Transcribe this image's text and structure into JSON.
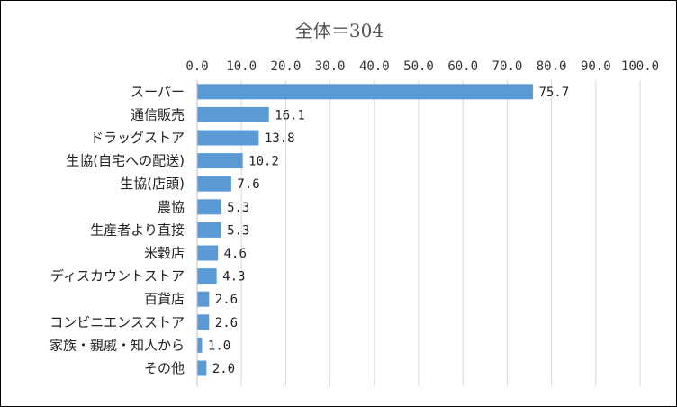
{
  "chart_data": {
    "type": "bar",
    "orientation": "horizontal",
    "title": "全体＝304",
    "categories": [
      "スーパー",
      "通信販売",
      "ドラッグストア",
      "生協(自宅への配送)",
      "生協(店頭)",
      "農協",
      "生産者より直接",
      "米穀店",
      "ディスカウントストア",
      "百貨店",
      "コンビニエンスストア",
      "家族・親戚・知人から",
      "その他"
    ],
    "values": [
      75.7,
      16.1,
      13.8,
      10.2,
      7.6,
      5.3,
      5.3,
      4.6,
      4.3,
      2.6,
      2.6,
      1.0,
      2.0
    ],
    "value_labels": [
      "75.7",
      "16.1",
      "13.8",
      "10.2",
      "7.6",
      "5.3",
      "5.3",
      "4.6",
      "4.3",
      "2.6",
      "2.6",
      "1.0",
      "2.0"
    ],
    "xlim": [
      0,
      100
    ],
    "ticks": [
      "0.0",
      "10.0",
      "20.0",
      "30.0",
      "40.0",
      "50.0",
      "60.0",
      "70.0",
      "80.0",
      "90.0",
      "100.0"
    ],
    "xaxis_position": "top",
    "grid": true,
    "legend": "none",
    "bar_color": "#5b9bd5"
  }
}
